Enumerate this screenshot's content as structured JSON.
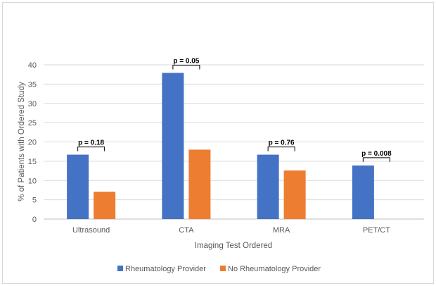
{
  "chart_data": {
    "type": "bar",
    "title": "",
    "xlabel": "Imaging Test Ordered",
    "ylabel": "% of Patients with Ordered Study",
    "ylim": [
      0,
      40
    ],
    "yticks": [
      0,
      5,
      10,
      15,
      20,
      25,
      30,
      35,
      40
    ],
    "grid": true,
    "legend_position": "bottom",
    "categories": [
      "Ultrasound",
      "CTA",
      "MRA",
      "PET/CT"
    ],
    "series": [
      {
        "name": "Rheumatology Provider",
        "color": "#4472c4",
        "values": [
          16.7,
          37.9,
          16.7,
          13.9
        ]
      },
      {
        "name": "No Rheumatology Provider",
        "color": "#ed7d31",
        "values": [
          7.1,
          18.0,
          12.6,
          0
        ]
      }
    ],
    "annotations": [
      "p = 0.18",
      "p = 0.05",
      "p = 0.76",
      "p = 0.008"
    ]
  }
}
